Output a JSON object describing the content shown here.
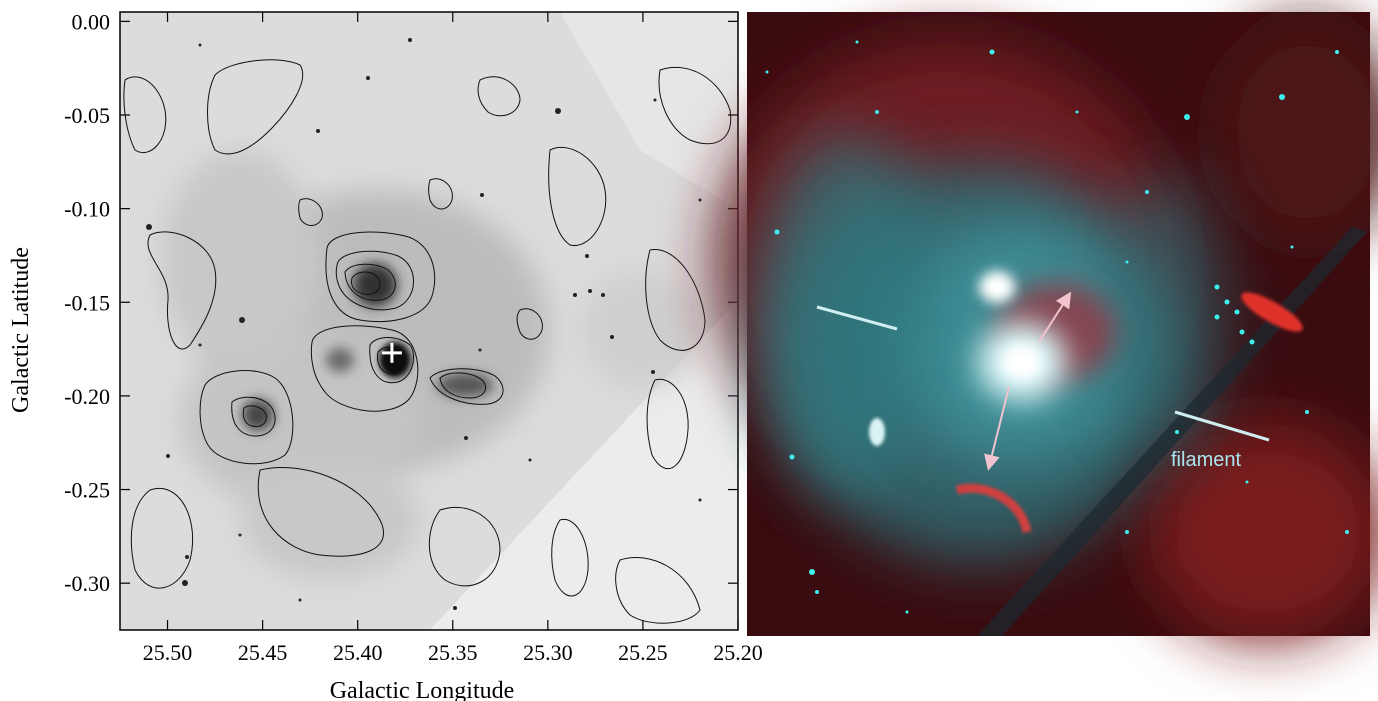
{
  "left_plot": {
    "xlabel": "Galactic Longitude",
    "ylabel": "Galactic Latitude",
    "xlim": [
      25.525,
      25.2
    ],
    "ylim": [
      -0.325,
      0.005
    ],
    "x_ticks": [
      {
        "value": 25.5,
        "label": "25.50"
      },
      {
        "value": 25.45,
        "label": "25.45"
      },
      {
        "value": 25.4,
        "label": "25.40"
      },
      {
        "value": 25.35,
        "label": "25.35"
      },
      {
        "value": 25.3,
        "label": "25.30"
      },
      {
        "value": 25.25,
        "label": "25.25"
      },
      {
        "value": 25.2,
        "label": "25.20"
      }
    ],
    "y_ticks": [
      {
        "value": 0.0,
        "label": "0.00"
      },
      {
        "value": -0.05,
        "label": "-0.05"
      },
      {
        "value": -0.1,
        "label": "-0.10"
      },
      {
        "value": -0.15,
        "label": "-0.15"
      },
      {
        "value": -0.2,
        "label": "-0.20"
      },
      {
        "value": -0.25,
        "label": "-0.25"
      },
      {
        "value": -0.3,
        "label": "-0.30"
      }
    ],
    "marker": {
      "l": 25.382,
      "b": -0.177,
      "symbol": "+",
      "color": "#ffffff"
    },
    "image_colormap": "grayscale"
  },
  "right_image": {
    "colormap": "red-cyan composite",
    "annotation_label": "filament",
    "annotation_color": "#a9e6ee",
    "arrow_color": "#f2c4cf"
  }
}
